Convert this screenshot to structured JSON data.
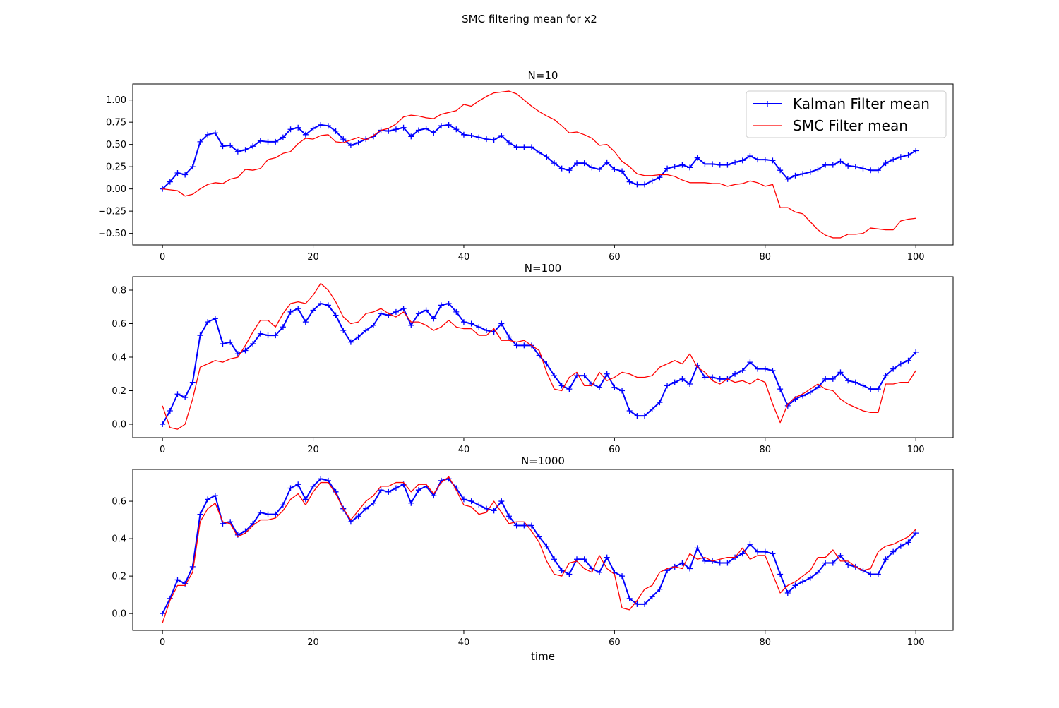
{
  "figure": {
    "suptitle": "SMC filtering mean for x2"
  },
  "chart_data": [
    {
      "type": "line",
      "title": "N=10",
      "xlabel": "",
      "ylabel": "",
      "xlim": [
        -3.95,
        104.95
      ],
      "ylim": [
        -0.63,
        1.18
      ],
      "xticks": [
        0,
        20,
        40,
        60,
        80,
        100
      ],
      "yticks": [
        -0.5,
        -0.25,
        0.0,
        0.25,
        0.5,
        0.75,
        1.0
      ],
      "ytick_labels": [
        "−0.50",
        "−0.25",
        "0.00",
        "0.25",
        "0.50",
        "0.75",
        "1.00"
      ],
      "grid": false,
      "legend": "upper-right",
      "series": [
        {
          "name": "Kalman Filter mean",
          "color": "#0000ff",
          "marker": "+",
          "values": [
            0.0,
            0.08,
            0.18,
            0.16,
            0.25,
            0.53,
            0.61,
            0.63,
            0.48,
            0.49,
            0.42,
            0.44,
            0.48,
            0.54,
            0.53,
            0.53,
            0.58,
            0.67,
            0.69,
            0.61,
            0.68,
            0.72,
            0.71,
            0.65,
            0.56,
            0.49,
            0.52,
            0.56,
            0.59,
            0.66,
            0.65,
            0.67,
            0.69,
            0.59,
            0.66,
            0.68,
            0.63,
            0.71,
            0.72,
            0.67,
            0.61,
            0.6,
            0.58,
            0.56,
            0.55,
            0.6,
            0.52,
            0.47,
            0.47,
            0.47,
            0.41,
            0.36,
            0.29,
            0.23,
            0.21,
            0.29,
            0.29,
            0.24,
            0.22,
            0.3,
            0.22,
            0.2,
            0.08,
            0.05,
            0.05,
            0.09,
            0.13,
            0.23,
            0.25,
            0.27,
            0.24,
            0.35,
            0.28,
            0.28,
            0.27,
            0.27,
            0.3,
            0.32,
            0.37,
            0.33,
            0.33,
            0.32,
            0.21,
            0.11,
            0.15,
            0.17,
            0.19,
            0.22,
            0.27,
            0.27,
            0.31,
            0.26,
            0.25,
            0.23,
            0.21,
            0.21,
            0.29,
            0.33,
            0.36,
            0.38,
            0.43
          ]
        },
        {
          "name": "SMC Filter mean",
          "color": "#ff0000",
          "marker": "",
          "values": [
            0.0,
            -0.01,
            -0.02,
            -0.08,
            -0.06,
            0.0,
            0.05,
            0.07,
            0.06,
            0.11,
            0.13,
            0.22,
            0.21,
            0.23,
            0.33,
            0.35,
            0.4,
            0.42,
            0.51,
            0.57,
            0.56,
            0.6,
            0.61,
            0.53,
            0.52,
            0.55,
            0.58,
            0.55,
            0.6,
            0.66,
            0.68,
            0.73,
            0.81,
            0.83,
            0.82,
            0.8,
            0.79,
            0.84,
            0.86,
            0.88,
            0.95,
            0.93,
            0.99,
            1.04,
            1.08,
            1.09,
            1.1,
            1.07,
            1.0,
            0.93,
            0.87,
            0.82,
            0.78,
            0.71,
            0.63,
            0.64,
            0.61,
            0.57,
            0.49,
            0.5,
            0.42,
            0.31,
            0.25,
            0.17,
            0.15,
            0.15,
            0.16,
            0.16,
            0.14,
            0.1,
            0.07,
            0.07,
            0.07,
            0.06,
            0.06,
            0.03,
            0.05,
            0.06,
            0.09,
            0.07,
            0.03,
            0.05,
            -0.21,
            -0.21,
            -0.26,
            -0.28,
            -0.37,
            -0.46,
            -0.52,
            -0.55,
            -0.55,
            -0.51,
            -0.51,
            -0.5,
            -0.44,
            -0.45,
            -0.46,
            -0.46,
            -0.36,
            -0.34,
            -0.33
          ]
        }
      ]
    },
    {
      "type": "line",
      "title": "N=100",
      "xlabel": "",
      "ylabel": "",
      "xlim": [
        -3.95,
        104.95
      ],
      "ylim": [
        -0.08,
        0.88
      ],
      "xticks": [
        0,
        20,
        40,
        60,
        80,
        100
      ],
      "yticks": [
        0.0,
        0.2,
        0.4,
        0.6,
        0.8
      ],
      "ytick_labels": [
        "0.0",
        "0.2",
        "0.4",
        "0.6",
        "0.8"
      ],
      "grid": false,
      "legend": "",
      "series": [
        {
          "name": "Kalman Filter mean",
          "color": "#0000ff",
          "marker": "+",
          "values": [
            0.0,
            0.08,
            0.18,
            0.16,
            0.25,
            0.53,
            0.61,
            0.63,
            0.48,
            0.49,
            0.42,
            0.44,
            0.48,
            0.54,
            0.53,
            0.53,
            0.58,
            0.67,
            0.69,
            0.61,
            0.68,
            0.72,
            0.71,
            0.65,
            0.56,
            0.49,
            0.52,
            0.56,
            0.59,
            0.66,
            0.65,
            0.67,
            0.69,
            0.59,
            0.66,
            0.68,
            0.63,
            0.71,
            0.72,
            0.67,
            0.61,
            0.6,
            0.58,
            0.56,
            0.55,
            0.6,
            0.52,
            0.47,
            0.47,
            0.47,
            0.41,
            0.36,
            0.29,
            0.23,
            0.21,
            0.29,
            0.29,
            0.24,
            0.22,
            0.3,
            0.22,
            0.2,
            0.08,
            0.05,
            0.05,
            0.09,
            0.13,
            0.23,
            0.25,
            0.27,
            0.24,
            0.35,
            0.28,
            0.28,
            0.27,
            0.27,
            0.3,
            0.32,
            0.37,
            0.33,
            0.33,
            0.32,
            0.21,
            0.11,
            0.15,
            0.17,
            0.19,
            0.22,
            0.27,
            0.27,
            0.31,
            0.26,
            0.25,
            0.23,
            0.21,
            0.21,
            0.29,
            0.33,
            0.36,
            0.38,
            0.43
          ]
        },
        {
          "name": "SMC Filter mean",
          "color": "#ff0000",
          "marker": "",
          "values": [
            0.11,
            -0.02,
            -0.03,
            0.0,
            0.15,
            0.34,
            0.36,
            0.38,
            0.37,
            0.39,
            0.4,
            0.47,
            0.55,
            0.62,
            0.62,
            0.58,
            0.66,
            0.72,
            0.73,
            0.72,
            0.77,
            0.84,
            0.8,
            0.73,
            0.64,
            0.6,
            0.61,
            0.66,
            0.67,
            0.69,
            0.66,
            0.64,
            0.67,
            0.61,
            0.61,
            0.59,
            0.56,
            0.58,
            0.62,
            0.58,
            0.57,
            0.57,
            0.53,
            0.53,
            0.57,
            0.5,
            0.5,
            0.49,
            0.5,
            0.47,
            0.44,
            0.31,
            0.21,
            0.2,
            0.28,
            0.31,
            0.23,
            0.23,
            0.31,
            0.26,
            0.28,
            0.31,
            0.3,
            0.28,
            0.28,
            0.29,
            0.34,
            0.36,
            0.38,
            0.36,
            0.42,
            0.34,
            0.31,
            0.26,
            0.24,
            0.27,
            0.25,
            0.26,
            0.24,
            0.27,
            0.25,
            0.12,
            0.01,
            0.12,
            0.16,
            0.18,
            0.21,
            0.24,
            0.21,
            0.2,
            0.15,
            0.12,
            0.1,
            0.08,
            0.07,
            0.07,
            0.24,
            0.24,
            0.25,
            0.25,
            0.32
          ]
        }
      ]
    },
    {
      "type": "line",
      "title": "N=1000",
      "xlabel": "time",
      "ylabel": "",
      "xlim": [
        -3.95,
        104.95
      ],
      "ylim": [
        -0.09,
        0.77
      ],
      "xticks": [
        0,
        20,
        40,
        60,
        80,
        100
      ],
      "yticks": [
        0.0,
        0.2,
        0.4,
        0.6
      ],
      "ytick_labels": [
        "0.0",
        "0.2",
        "0.4",
        "0.6"
      ],
      "grid": false,
      "legend": "",
      "series": [
        {
          "name": "Kalman Filter mean",
          "color": "#0000ff",
          "marker": "+",
          "values": [
            0.0,
            0.08,
            0.18,
            0.16,
            0.25,
            0.53,
            0.61,
            0.63,
            0.48,
            0.49,
            0.42,
            0.44,
            0.48,
            0.54,
            0.53,
            0.53,
            0.58,
            0.67,
            0.69,
            0.61,
            0.68,
            0.72,
            0.71,
            0.65,
            0.56,
            0.49,
            0.52,
            0.56,
            0.59,
            0.66,
            0.65,
            0.67,
            0.69,
            0.59,
            0.66,
            0.68,
            0.63,
            0.71,
            0.72,
            0.67,
            0.61,
            0.6,
            0.58,
            0.56,
            0.55,
            0.6,
            0.52,
            0.47,
            0.47,
            0.47,
            0.41,
            0.36,
            0.29,
            0.23,
            0.21,
            0.29,
            0.29,
            0.24,
            0.22,
            0.3,
            0.22,
            0.2,
            0.08,
            0.05,
            0.05,
            0.09,
            0.13,
            0.23,
            0.25,
            0.27,
            0.24,
            0.35,
            0.28,
            0.28,
            0.27,
            0.27,
            0.3,
            0.32,
            0.37,
            0.33,
            0.33,
            0.32,
            0.21,
            0.11,
            0.15,
            0.17,
            0.19,
            0.22,
            0.27,
            0.27,
            0.31,
            0.26,
            0.25,
            0.23,
            0.21,
            0.21,
            0.29,
            0.33,
            0.36,
            0.38,
            0.43
          ]
        },
        {
          "name": "SMC Filter mean",
          "color": "#ff0000",
          "marker": "",
          "values": [
            -0.05,
            0.07,
            0.15,
            0.15,
            0.22,
            0.49,
            0.56,
            0.59,
            0.49,
            0.48,
            0.41,
            0.43,
            0.47,
            0.5,
            0.5,
            0.51,
            0.55,
            0.61,
            0.64,
            0.58,
            0.65,
            0.7,
            0.7,
            0.64,
            0.56,
            0.5,
            0.55,
            0.6,
            0.63,
            0.68,
            0.68,
            0.7,
            0.7,
            0.65,
            0.69,
            0.69,
            0.64,
            0.7,
            0.73,
            0.66,
            0.58,
            0.57,
            0.53,
            0.54,
            0.6,
            0.54,
            0.48,
            0.49,
            0.49,
            0.44,
            0.38,
            0.28,
            0.21,
            0.2,
            0.27,
            0.28,
            0.24,
            0.22,
            0.31,
            0.24,
            0.21,
            0.03,
            0.02,
            0.07,
            0.13,
            0.15,
            0.22,
            0.24,
            0.25,
            0.24,
            0.32,
            0.29,
            0.3,
            0.28,
            0.29,
            0.3,
            0.3,
            0.35,
            0.29,
            0.31,
            0.31,
            0.21,
            0.11,
            0.15,
            0.17,
            0.2,
            0.23,
            0.3,
            0.3,
            0.34,
            0.28,
            0.28,
            0.25,
            0.23,
            0.24,
            0.33,
            0.36,
            0.37,
            0.39,
            0.41,
            0.45
          ]
        }
      ]
    }
  ]
}
